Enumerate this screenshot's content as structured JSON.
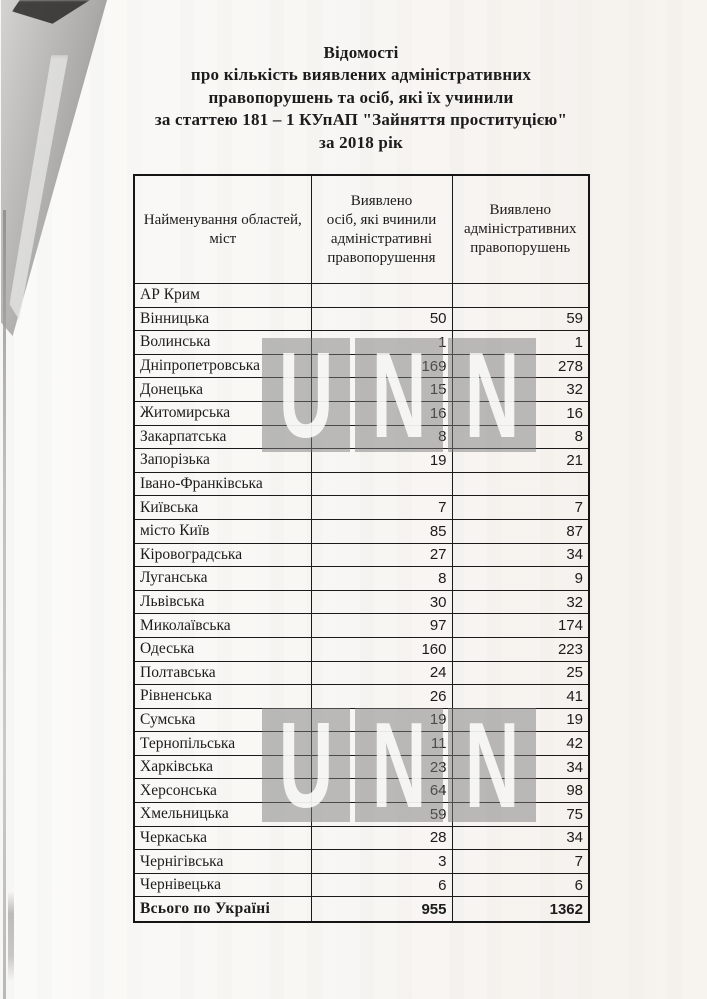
{
  "colors": {
    "paper": "#f8f6f3",
    "ink": "#1c1c1c",
    "watermark_gray": "#7c7c7c",
    "watermark_letter": "#fdfdfc"
  },
  "document": {
    "title_lines": [
      "Відомості",
      "про кількість виявлених адміністративних",
      "правопорушень та осіб, які їх учинили",
      "за статтею 181 – 1 КУпАП \"Зайняття проституцією\"",
      "за 2018 рік"
    ]
  },
  "watermark": {
    "letters": [
      "U",
      "N",
      "N"
    ]
  },
  "table": {
    "headers": {
      "region": "Найменування областей,\nміст",
      "persons": "Виявлено\nосіб, які вчинили\nадміністративні\nправопорушення",
      "offenses": "Виявлено\nадміністративних\nправопорушень"
    },
    "rows": [
      {
        "region": "АР Крим",
        "persons": "",
        "offenses": ""
      },
      {
        "region": "Вінницька",
        "persons": "50",
        "offenses": "59"
      },
      {
        "region": "Волинська",
        "persons": "1",
        "offenses": "1"
      },
      {
        "region": "Дніпропетровська",
        "persons": "169",
        "offenses": "278"
      },
      {
        "region": "Донецька",
        "persons": "15",
        "offenses": "32"
      },
      {
        "region": "Житомирська",
        "persons": "16",
        "offenses": "16"
      },
      {
        "region": "Закарпатська",
        "persons": "8",
        "offenses": "8"
      },
      {
        "region": "Запорізька",
        "persons": "19",
        "offenses": "21"
      },
      {
        "region": "Івано-Франківська",
        "persons": "",
        "offenses": ""
      },
      {
        "region": "Київська",
        "persons": "7",
        "offenses": "7"
      },
      {
        "region": "місто Київ",
        "persons": "85",
        "offenses": "87"
      },
      {
        "region": "Кіровоградська",
        "persons": "27",
        "offenses": "34"
      },
      {
        "region": "Луганська",
        "persons": "8",
        "offenses": "9"
      },
      {
        "region": "Львівська",
        "persons": "30",
        "offenses": "32"
      },
      {
        "region": "Миколаївська",
        "persons": "97",
        "offenses": "174"
      },
      {
        "region": "Одеська",
        "persons": "160",
        "offenses": "223"
      },
      {
        "region": "Полтавська",
        "persons": "24",
        "offenses": "25"
      },
      {
        "region": "Рівненська",
        "persons": "26",
        "offenses": "41"
      },
      {
        "region": "Сумська",
        "persons": "19",
        "offenses": "19"
      },
      {
        "region": "Тернопільська",
        "persons": "11",
        "offenses": "42"
      },
      {
        "region": "Харківська",
        "persons": "23",
        "offenses": "34"
      },
      {
        "region": "Херсонська",
        "persons": "64",
        "offenses": "98"
      },
      {
        "region": "Хмельницька",
        "persons": "59",
        "offenses": "75"
      },
      {
        "region": "Черкаська",
        "persons": "28",
        "offenses": "34"
      },
      {
        "region": "Чернігівська",
        "persons": "3",
        "offenses": "7"
      },
      {
        "region": "Чернівецька",
        "persons": "6",
        "offenses": "6"
      }
    ],
    "total": {
      "region": "Всього по Україні",
      "persons": "955",
      "offenses": "1362"
    }
  }
}
